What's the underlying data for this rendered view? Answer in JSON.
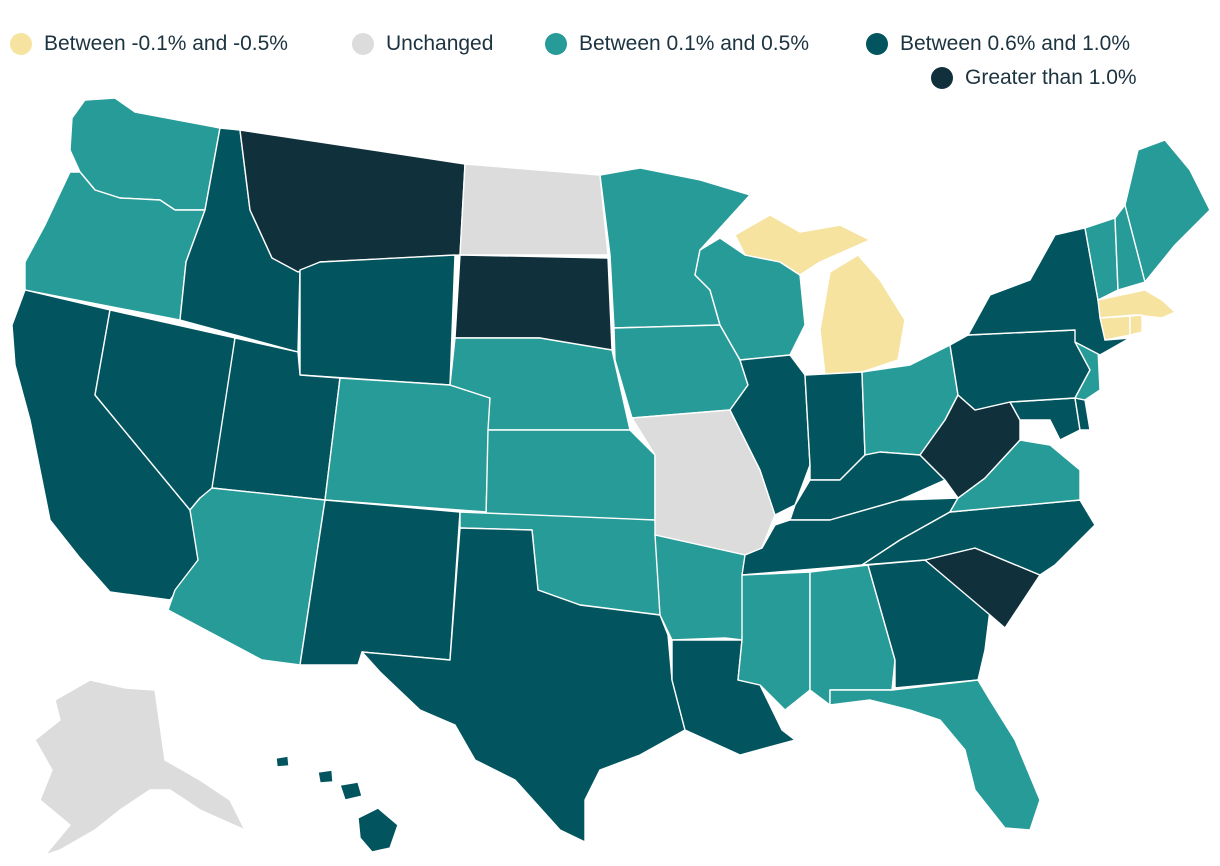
{
  "legend": {
    "items": [
      {
        "label": "Between -0.1% and -0.5%",
        "color": "#f6e3a0",
        "category": "decline"
      },
      {
        "label": "Unchanged",
        "color": "#dcdcdc",
        "category": "unchanged"
      },
      {
        "label": "Between 0.1% and 0.5%",
        "color": "#269b98",
        "category": "low"
      },
      {
        "label": "Between 0.6% and 1.0%",
        "color": "#02555e",
        "category": "mid"
      },
      {
        "label": "Greater than 1.0%",
        "color": "#10303c",
        "category": "high"
      }
    ]
  },
  "states": {
    "WA": "low",
    "OR": "low",
    "CA": "mid",
    "NV": "mid",
    "ID": "mid",
    "MT": "high",
    "WY": "mid",
    "UT": "mid",
    "AZ": "low",
    "CO": "low",
    "NM": "mid",
    "ND": "unchanged",
    "SD": "high",
    "NE": "low",
    "KS": "low",
    "OK": "low",
    "TX": "mid",
    "MN": "low",
    "IA": "low",
    "MO": "unchanged",
    "AR": "low",
    "LA": "mid",
    "WI": "low",
    "IL": "mid",
    "MI": "decline",
    "IN": "mid",
    "OH": "low",
    "KY": "mid",
    "TN": "mid",
    "MS": "low",
    "AL": "low",
    "GA": "mid",
    "FL": "low",
    "SC": "high",
    "NC": "mid",
    "VA": "low",
    "WV": "high",
    "MD": "mid",
    "DE": "mid",
    "PA": "mid",
    "NJ": "low",
    "NY": "mid",
    "CT": "decline",
    "RI": "decline",
    "MA": "decline",
    "VT": "low",
    "NH": "low",
    "ME": "low",
    "AK": "unchanged",
    "HI": "mid"
  }
}
